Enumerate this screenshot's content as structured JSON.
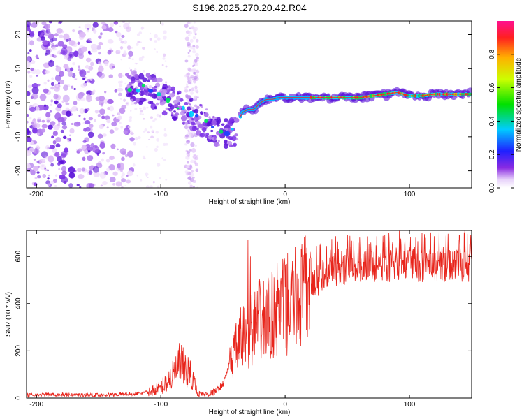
{
  "title": "S196.2025.270.20.42.R04",
  "chart_data": [
    {
      "type": "heatmap",
      "name": "spectrogram",
      "xlabel": "Height of straight line (km)",
      "ylabel": "Frequency (Hz)",
      "xlim": [
        -208,
        150
      ],
      "ylim": [
        -25,
        24
      ],
      "xticks": [
        -200,
        -100,
        0,
        100
      ],
      "yticks": [
        -20,
        -10,
        0,
        10,
        20
      ],
      "tone_ridge": {
        "x": [
          -125,
          -110,
          -95,
          -85,
          -75,
          -65,
          -55,
          -45,
          -40,
          -35,
          -30,
          -25,
          -20,
          -15,
          -10,
          -5,
          0,
          10,
          20,
          40,
          60,
          80,
          90,
          100,
          110,
          120,
          150
        ],
        "y": [
          4.5,
          4,
          1,
          -1,
          -3,
          -6,
          -8,
          -9,
          -8.5,
          -3,
          -2,
          -2,
          0,
          1,
          1,
          1.5,
          1.5,
          1.5,
          1.5,
          1.5,
          1.5,
          2.5,
          3,
          2,
          2,
          2.5,
          2.5
        ]
      },
      "colorbar": {
        "label": "Normalized spectral amplitude",
        "ticks": [
          0.0,
          0.2,
          0.4,
          0.6,
          0.8
        ],
        "range": [
          0,
          1
        ]
      }
    },
    {
      "type": "line",
      "name": "snr",
      "xlabel": "Height of straight line (km)",
      "ylabel": "SNR (10 * v/v)",
      "xlim": [
        -208,
        150
      ],
      "ylim": [
        0,
        710
      ],
      "xticks": [
        -200,
        -100,
        0,
        100
      ],
      "yticks": [
        0,
        200,
        400,
        600
      ],
      "color": "#e8251c",
      "series": {
        "x": [
          -208,
          -190,
          -170,
          -150,
          -130,
          -120,
          -110,
          -100,
          -95,
          -90,
          -85,
          -80,
          -75,
          -70,
          -65,
          -60,
          -55,
          -50,
          -45,
          -40,
          -35,
          -30,
          -25,
          -20,
          -15,
          -10,
          -5,
          0,
          10,
          20,
          30,
          40,
          60,
          80,
          100,
          120,
          150
        ],
        "values": [
          12,
          15,
          14,
          13,
          16,
          18,
          25,
          45,
          70,
          95,
          140,
          120,
          90,
          20,
          15,
          20,
          30,
          60,
          140,
          200,
          260,
          270,
          300,
          330,
          330,
          350,
          380,
          390,
          420,
          470,
          520,
          540,
          550,
          555,
          560,
          560,
          560
        ],
        "spike_peaks": [
          [
            -30,
            670
          ],
          [
            -28,
            600
          ],
          [
            0,
            470
          ],
          [
            20,
            620
          ],
          [
            60,
            680
          ],
          [
            80,
            690
          ],
          [
            110,
            700
          ],
          [
            140,
            690
          ]
        ]
      }
    }
  ]
}
